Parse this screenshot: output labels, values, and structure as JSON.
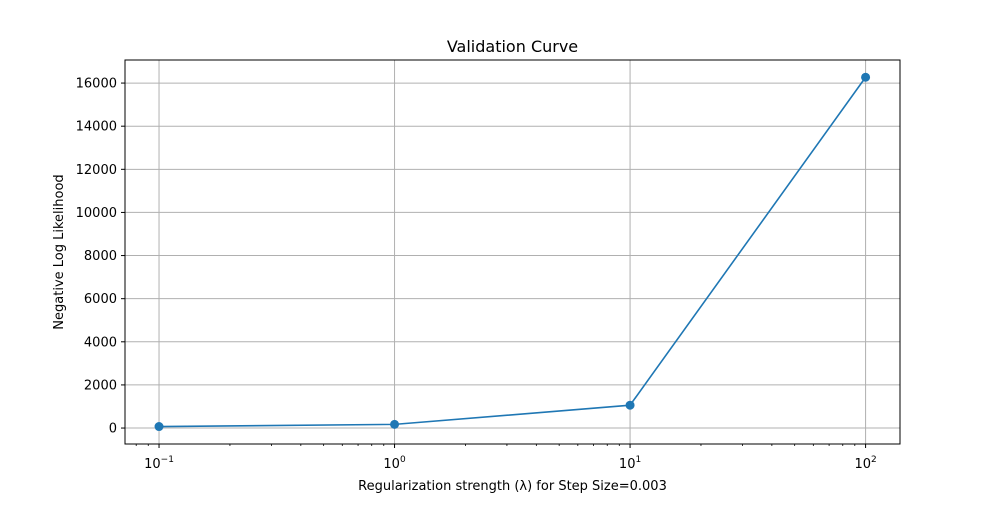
{
  "chart_data": {
    "type": "line",
    "title": "Validation Curve",
    "xlabel": "Regularization strength (λ) for Step Size=0.003",
    "ylabel": "Negative Log Likelihood",
    "x_scale": "log",
    "x": [
      0.1,
      1,
      10,
      100
    ],
    "series": [
      {
        "values": [
          70,
          170,
          1060,
          16270
        ],
        "color": "#1f77b4",
        "marker": "circle"
      }
    ],
    "x_ticks": [
      {
        "value": 0.1,
        "base": "10",
        "exp": "−1"
      },
      {
        "value": 1,
        "base": "10",
        "exp": "0"
      },
      {
        "value": 10,
        "base": "10",
        "exp": "1"
      },
      {
        "value": 100,
        "base": "10",
        "exp": "2"
      }
    ],
    "y_ticks": [
      0,
      2000,
      4000,
      6000,
      8000,
      10000,
      12000,
      14000,
      16000
    ],
    "xlim": [
      0.0717,
      140
    ],
    "ylim": [
      -740,
      17070
    ],
    "grid": true,
    "legend": "none"
  }
}
